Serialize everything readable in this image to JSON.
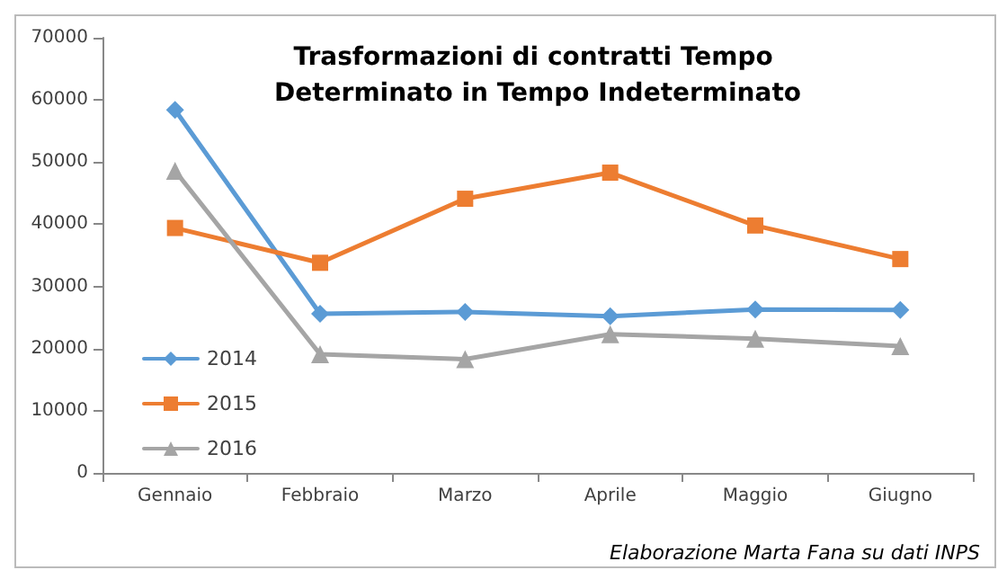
{
  "chart_data": {
    "type": "line",
    "title": "Trasformazioni di contratti Tempo Determinato in Tempo Indeterminato",
    "categories": [
      "Gennaio",
      "Febbraio",
      "Marzo",
      "Aprile",
      "Maggio",
      "Giugno"
    ],
    "series": [
      {
        "name": "2014",
        "color": "#5b9bd5",
        "marker": "diamond",
        "values": [
          58400,
          25600,
          25900,
          25200,
          26300,
          26200
        ]
      },
      {
        "name": "2015",
        "color": "#ed7d31",
        "marker": "square",
        "values": [
          39400,
          33800,
          44100,
          48300,
          39800,
          34400
        ]
      },
      {
        "name": "2016",
        "color": "#a5a5a5",
        "marker": "triangle",
        "values": [
          48600,
          19100,
          18300,
          22300,
          21600,
          20400
        ]
      }
    ],
    "ylim": [
      0,
      70000
    ],
    "yticks": [
      0,
      10000,
      20000,
      30000,
      40000,
      50000,
      60000,
      70000
    ],
    "grid": false,
    "legend": "left",
    "line_style": "solid",
    "annotations": [
      "Elaborazione Marta Fana su dati INPS"
    ]
  }
}
